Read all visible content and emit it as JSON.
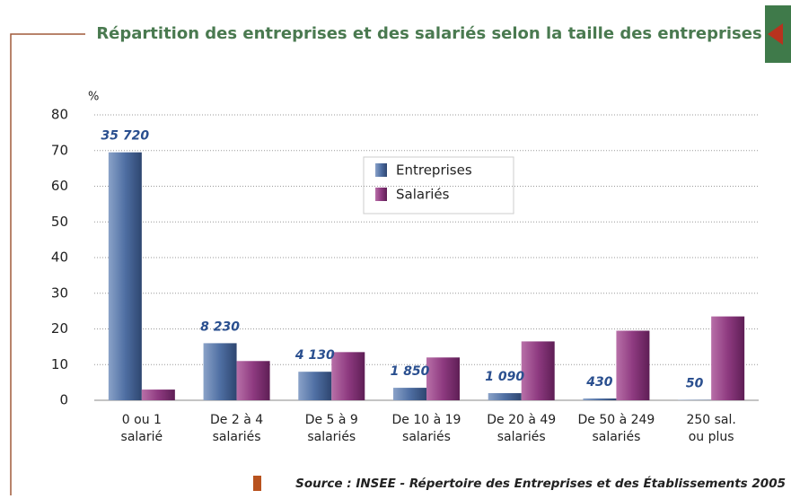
{
  "chart_data": {
    "type": "bar",
    "title": "Répartition des entreprises et des salariés selon la taille des entreprises",
    "y_label": "%",
    "categories": [
      [
        "0 ou 1",
        "salarié"
      ],
      [
        "De 2 à 4",
        "salariés"
      ],
      [
        "De 5 à 9",
        "salariés"
      ],
      [
        "De 10 à 19",
        "salariés"
      ],
      [
        "De 20 à 49",
        "salariés"
      ],
      [
        "De 50 à 249",
        "salariés"
      ],
      [
        "250 sal.",
        "ou plus"
      ]
    ],
    "series": [
      {
        "name": "Entreprises",
        "color": "#4f6fa3",
        "values": [
          69.5,
          16,
          8,
          3.5,
          2,
          0.5,
          0.1
        ]
      },
      {
        "name": "Salariés",
        "color": "#8e3a80",
        "values": [
          3,
          11,
          13.5,
          12,
          16.5,
          19.5,
          23.5
        ]
      }
    ],
    "bar_annotations": [
      "35 720",
      "8 230",
      "4 130",
      "1 850",
      "1 090",
      "430",
      "50"
    ],
    "ylim": [
      0,
      80
    ],
    "yticks": [
      0,
      10,
      20,
      30,
      40,
      50,
      60,
      70,
      80
    ],
    "grid": true,
    "source": "Source : INSEE - Répertoire des Entreprises et des Établissements 2005"
  }
}
